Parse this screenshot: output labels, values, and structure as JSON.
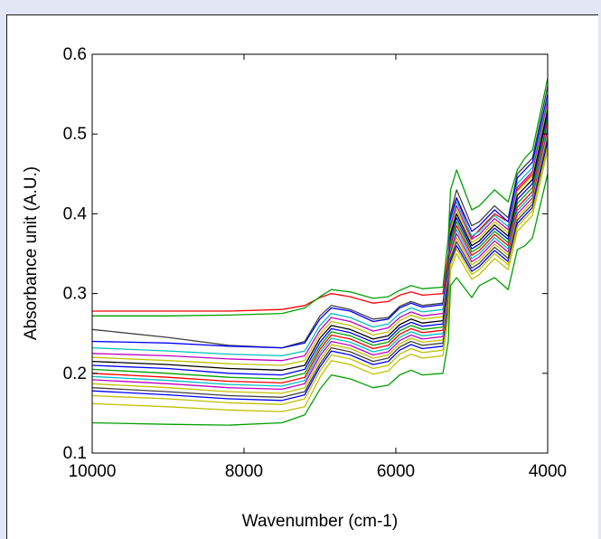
{
  "chart_data": {
    "type": "line",
    "title": "",
    "xlabel": "Wavenumber (cm-1)",
    "ylabel": "Absorbance unit (A.U.)",
    "xlim": [
      10000,
      4000
    ],
    "ylim": [
      0.1,
      0.6
    ],
    "x_reversed": true,
    "grid": false,
    "legend": "none",
    "x_ticks": [
      {
        "value": 10000,
        "label": "10000"
      },
      {
        "value": 8000,
        "label": "8000"
      },
      {
        "value": 6000,
        "label": "6000"
      },
      {
        "value": 4000,
        "label": "4000"
      }
    ],
    "y_ticks": [
      {
        "value": 0.1,
        "label": "0.1"
      },
      {
        "value": 0.2,
        "label": "0.2"
      },
      {
        "value": 0.3,
        "label": "0.3"
      },
      {
        "value": 0.4,
        "label": "0.4"
      },
      {
        "value": 0.5,
        "label": "0.5"
      },
      {
        "value": 0.6,
        "label": "0.6"
      }
    ],
    "x": [
      10000,
      9000,
      8200,
      7500,
      7200,
      7000,
      6850,
      6600,
      6300,
      6100,
      5950,
      5800,
      5650,
      5380,
      5310,
      5280,
      5200,
      5000,
      4900,
      4700,
      4520,
      4400,
      4300,
      4200,
      4000
    ],
    "series": [
      {
        "color": "#ff0000",
        "values": [
          0.278,
          0.278,
          0.278,
          0.28,
          0.285,
          0.295,
          0.3,
          0.296,
          0.288,
          0.29,
          0.298,
          0.302,
          0.298,
          0.3,
          0.35,
          0.4,
          0.42,
          0.37,
          0.38,
          0.4,
          0.39,
          0.43,
          0.44,
          0.45,
          0.52
        ]
      },
      {
        "color": "#00a000",
        "values": [
          0.272,
          0.272,
          0.273,
          0.275,
          0.282,
          0.296,
          0.305,
          0.302,
          0.294,
          0.296,
          0.304,
          0.31,
          0.306,
          0.308,
          0.37,
          0.43,
          0.455,
          0.405,
          0.41,
          0.43,
          0.415,
          0.455,
          0.47,
          0.48,
          0.57
        ]
      },
      {
        "color": "#404040",
        "values": [
          0.255,
          0.245,
          0.235,
          0.232,
          0.24,
          0.272,
          0.285,
          0.28,
          0.268,
          0.27,
          0.284,
          0.29,
          0.285,
          0.288,
          0.34,
          0.4,
          0.43,
          0.385,
          0.39,
          0.41,
          0.395,
          0.45,
          0.46,
          0.47,
          0.56
        ]
      },
      {
        "color": "#0000ff",
        "values": [
          0.24,
          0.238,
          0.234,
          0.232,
          0.238,
          0.268,
          0.282,
          0.278,
          0.265,
          0.268,
          0.282,
          0.288,
          0.283,
          0.286,
          0.335,
          0.395,
          0.42,
          0.378,
          0.385,
          0.405,
          0.39,
          0.445,
          0.455,
          0.465,
          0.55
        ]
      },
      {
        "color": "#00c0c0",
        "values": [
          0.232,
          0.228,
          0.224,
          0.222,
          0.228,
          0.26,
          0.275,
          0.27,
          0.258,
          0.262,
          0.275,
          0.282,
          0.277,
          0.28,
          0.33,
          0.39,
          0.415,
          0.372,
          0.378,
          0.398,
          0.384,
          0.438,
          0.448,
          0.458,
          0.545
        ]
      },
      {
        "color": "#c000c0",
        "values": [
          0.225,
          0.222,
          0.218,
          0.216,
          0.222,
          0.254,
          0.27,
          0.265,
          0.253,
          0.257,
          0.27,
          0.277,
          0.272,
          0.275,
          0.325,
          0.385,
          0.41,
          0.368,
          0.374,
          0.394,
          0.38,
          0.433,
          0.443,
          0.453,
          0.54
        ]
      },
      {
        "color": "#c0c000",
        "values": [
          0.22,
          0.216,
          0.212,
          0.21,
          0.216,
          0.249,
          0.265,
          0.26,
          0.248,
          0.252,
          0.266,
          0.273,
          0.268,
          0.271,
          0.32,
          0.38,
          0.405,
          0.364,
          0.37,
          0.39,
          0.376,
          0.428,
          0.438,
          0.448,
          0.535
        ]
      },
      {
        "color": "#000000",
        "values": [
          0.215,
          0.211,
          0.206,
          0.204,
          0.21,
          0.244,
          0.26,
          0.255,
          0.243,
          0.247,
          0.261,
          0.268,
          0.263,
          0.266,
          0.315,
          0.375,
          0.4,
          0.36,
          0.366,
          0.386,
          0.372,
          0.423,
          0.433,
          0.443,
          0.53
        ]
      },
      {
        "color": "#0000ff",
        "values": [
          0.21,
          0.206,
          0.2,
          0.198,
          0.205,
          0.239,
          0.256,
          0.251,
          0.239,
          0.243,
          0.257,
          0.264,
          0.259,
          0.262,
          0.31,
          0.37,
          0.395,
          0.356,
          0.362,
          0.382,
          0.368,
          0.418,
          0.428,
          0.438,
          0.525
        ]
      },
      {
        "color": "#00a000",
        "values": [
          0.205,
          0.2,
          0.195,
          0.193,
          0.2,
          0.234,
          0.252,
          0.247,
          0.235,
          0.239,
          0.253,
          0.26,
          0.255,
          0.258,
          0.305,
          0.365,
          0.39,
          0.352,
          0.358,
          0.378,
          0.364,
          0.413,
          0.423,
          0.433,
          0.52
        ]
      },
      {
        "color": "#ff0000",
        "values": [
          0.2,
          0.195,
          0.19,
          0.188,
          0.195,
          0.23,
          0.248,
          0.243,
          0.231,
          0.235,
          0.249,
          0.256,
          0.251,
          0.254,
          0.3,
          0.36,
          0.385,
          0.348,
          0.354,
          0.374,
          0.36,
          0.408,
          0.418,
          0.428,
          0.515
        ]
      },
      {
        "color": "#00c0c0",
        "values": [
          0.196,
          0.191,
          0.186,
          0.184,
          0.191,
          0.226,
          0.244,
          0.239,
          0.227,
          0.231,
          0.245,
          0.252,
          0.247,
          0.25,
          0.296,
          0.356,
          0.38,
          0.344,
          0.35,
          0.37,
          0.356,
          0.404,
          0.414,
          0.424,
          0.51
        ]
      },
      {
        "color": "#c000c0",
        "values": [
          0.192,
          0.187,
          0.182,
          0.18,
          0.187,
          0.222,
          0.24,
          0.235,
          0.223,
          0.227,
          0.241,
          0.248,
          0.243,
          0.246,
          0.292,
          0.352,
          0.375,
          0.34,
          0.346,
          0.366,
          0.352,
          0.4,
          0.41,
          0.42,
          0.505
        ]
      },
      {
        "color": "#c0c000",
        "values": [
          0.187,
          0.182,
          0.177,
          0.175,
          0.182,
          0.217,
          0.236,
          0.231,
          0.219,
          0.223,
          0.237,
          0.244,
          0.239,
          0.242,
          0.288,
          0.348,
          0.37,
          0.336,
          0.342,
          0.362,
          0.348,
          0.396,
          0.406,
          0.416,
          0.5
        ]
      },
      {
        "color": "#404040",
        "values": [
          0.182,
          0.177,
          0.172,
          0.17,
          0.177,
          0.212,
          0.232,
          0.227,
          0.215,
          0.219,
          0.233,
          0.24,
          0.235,
          0.238,
          0.284,
          0.344,
          0.365,
          0.332,
          0.338,
          0.358,
          0.344,
          0.392,
          0.402,
          0.412,
          0.495
        ]
      },
      {
        "color": "#0000ff",
        "values": [
          0.178,
          0.173,
          0.168,
          0.166,
          0.173,
          0.208,
          0.228,
          0.223,
          0.211,
          0.215,
          0.229,
          0.236,
          0.231,
          0.234,
          0.28,
          0.34,
          0.36,
          0.328,
          0.334,
          0.354,
          0.34,
          0.388,
          0.398,
          0.408,
          0.49
        ]
      },
      {
        "color": "#c0c000",
        "values": [
          0.172,
          0.168,
          0.163,
          0.161,
          0.168,
          0.203,
          0.223,
          0.218,
          0.206,
          0.21,
          0.224,
          0.231,
          0.226,
          0.229,
          0.276,
          0.336,
          0.356,
          0.324,
          0.33,
          0.35,
          0.336,
          0.384,
          0.394,
          0.404,
          0.485
        ]
      },
      {
        "color": "#c0c000",
        "values": [
          0.162,
          0.158,
          0.154,
          0.152,
          0.158,
          0.195,
          0.216,
          0.211,
          0.199,
          0.203,
          0.217,
          0.224,
          0.219,
          0.222,
          0.27,
          0.33,
          0.35,
          0.318,
          0.324,
          0.344,
          0.33,
          0.378,
          0.388,
          0.398,
          0.48
        ]
      },
      {
        "color": "#00a000",
        "values": [
          0.138,
          0.136,
          0.135,
          0.138,
          0.148,
          0.18,
          0.198,
          0.193,
          0.182,
          0.185,
          0.198,
          0.204,
          0.198,
          0.2,
          0.24,
          0.31,
          0.32,
          0.295,
          0.31,
          0.32,
          0.305,
          0.355,
          0.36,
          0.37,
          0.45
        ]
      }
    ]
  }
}
